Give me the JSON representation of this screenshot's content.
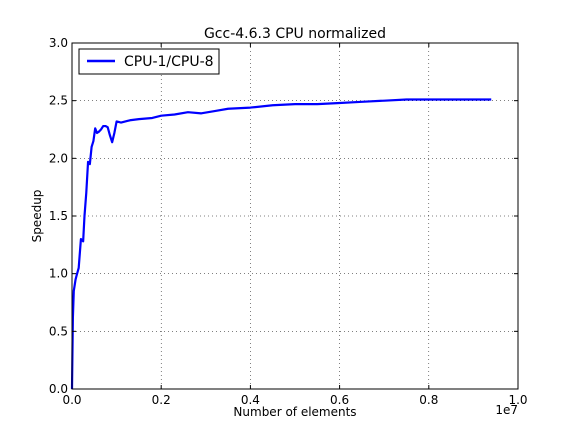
{
  "chart_data": {
    "type": "line",
    "title": "Gcc-4.6.3 CPU normalized",
    "xlabel": "Number of elements",
    "ylabel": "Speedup",
    "x_offset_label": "1e7",
    "xlim": [
      0,
      10000000
    ],
    "ylim": [
      0,
      3.0
    ],
    "x_ticks": [
      0,
      2000000,
      4000000,
      6000000,
      8000000,
      10000000
    ],
    "x_tick_labels": [
      "0.0",
      "0.2",
      "0.4",
      "0.6",
      "0.8",
      "1.0"
    ],
    "y_ticks": [
      0,
      0.5,
      1.0,
      1.5,
      2.0,
      2.5,
      3.0
    ],
    "y_tick_labels": [
      "0.0",
      "0.5",
      "1.0",
      "1.5",
      "2.0",
      "2.5",
      "3.0"
    ],
    "grid": true,
    "legend_position": "top-left",
    "series": [
      {
        "name": "CPU-1/CPU-8",
        "color": "#0000ff",
        "x": [
          0,
          20000,
          40000,
          60000,
          80000,
          100000,
          150000,
          200000,
          250000,
          280000,
          320000,
          360000,
          400000,
          440000,
          480000,
          520000,
          560000,
          600000,
          650000,
          700000,
          750000,
          800000,
          850000,
          900000,
          950000,
          1000000,
          1100000,
          1300000,
          1500000,
          1800000,
          2000000,
          2300000,
          2600000,
          2900000,
          3200000,
          3500000,
          4000000,
          4500000,
          5000000,
          5500000,
          6000000,
          6500000,
          7000000,
          7500000,
          8000000,
          8500000,
          9000000,
          9400000
        ],
        "y": [
          0.0,
          0.62,
          0.85,
          0.9,
          0.95,
          0.98,
          1.05,
          1.3,
          1.28,
          1.5,
          1.7,
          1.97,
          1.95,
          2.1,
          2.15,
          2.26,
          2.22,
          2.23,
          2.25,
          2.28,
          2.28,
          2.27,
          2.2,
          2.14,
          2.22,
          2.32,
          2.31,
          2.33,
          2.34,
          2.35,
          2.37,
          2.38,
          2.4,
          2.39,
          2.41,
          2.43,
          2.44,
          2.46,
          2.47,
          2.47,
          2.48,
          2.49,
          2.5,
          2.51,
          2.51,
          2.51,
          2.51,
          2.51
        ]
      }
    ]
  }
}
